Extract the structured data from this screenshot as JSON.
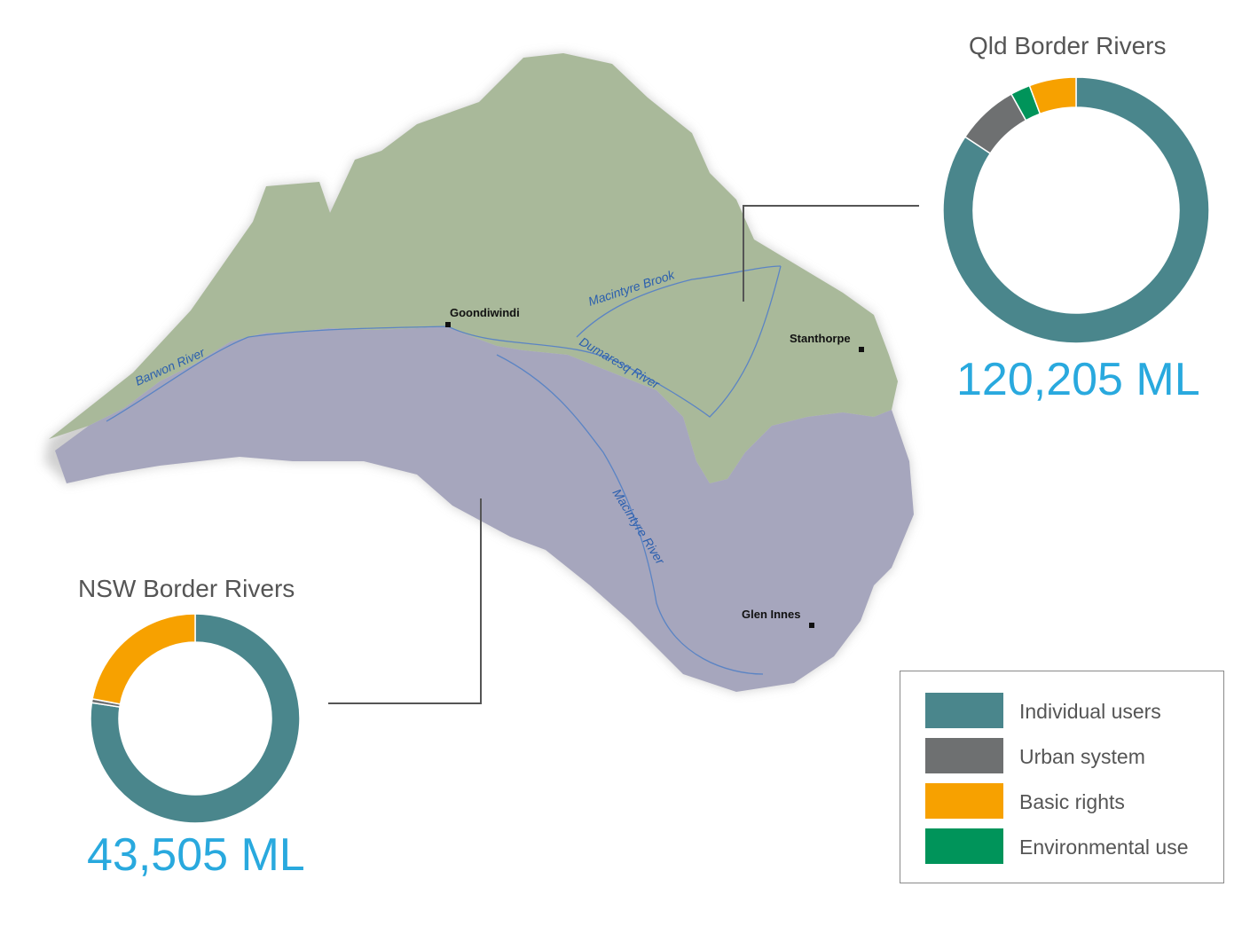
{
  "colors": {
    "individual": "#4a868c",
    "urban": "#6e7071",
    "basic": "#f7a100",
    "environmental": "#00945a",
    "qld_region": "#a9b99a",
    "nsw_region": "#a6a6bd",
    "river_line": "#5b84c4",
    "total_text": "#29a9de"
  },
  "map": {
    "places": [
      {
        "name": "Goondiwindi"
      },
      {
        "name": "Stanthorpe"
      },
      {
        "name": "Glen Innes"
      }
    ],
    "rivers": [
      {
        "name": "Barwon River"
      },
      {
        "name": "Macintyre Brook"
      },
      {
        "name": "Dumaresq River"
      },
      {
        "name": "Macintyre River"
      }
    ]
  },
  "charts": [
    {
      "title": "Qld Border Rivers",
      "total": "120,205 ML",
      "segments": [
        {
          "category": "Individual users",
          "fraction": 0.843
        },
        {
          "category": "Urban system",
          "fraction": 0.076
        },
        {
          "category": "Environmental use",
          "fraction": 0.024
        },
        {
          "category": "Basic rights",
          "fraction": 0.057
        }
      ]
    },
    {
      "title": "NSW Border Rivers",
      "total": "43,505 ML",
      "segments": [
        {
          "category": "Individual users",
          "fraction": 0.774
        },
        {
          "category": "Urban system",
          "fraction": 0.006
        },
        {
          "category": "Basic rights",
          "fraction": 0.22
        }
      ]
    }
  ],
  "legend": {
    "items": [
      {
        "label": "Individual users",
        "key": "individual"
      },
      {
        "label": "Urban system",
        "key": "urban"
      },
      {
        "label": "Basic rights",
        "key": "basic"
      },
      {
        "label": "Environmental use",
        "key": "environmental"
      }
    ]
  }
}
